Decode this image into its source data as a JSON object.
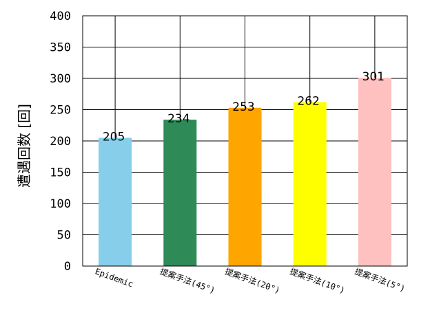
{
  "chart_data": {
    "type": "bar",
    "categories": [
      "Epidemic",
      "提案手法(45°)",
      "提案手法(20°)",
      "提案手法(10°)",
      "提案手法(5°)"
    ],
    "values": [
      205,
      234,
      253,
      262,
      301
    ],
    "colors": [
      "#87ceeb",
      "#2e8b57",
      "#ffa500",
      "#ffff00",
      "#ffc0c0"
    ],
    "data_labels": [
      "205",
      "234",
      "253",
      "262",
      "301"
    ],
    "xlabel": "",
    "ylabel": "遭遇回数 [回]",
    "ylim": [
      0,
      400
    ],
    "yticks": [
      "0",
      "50",
      "100",
      "150",
      "200",
      "250",
      "300",
      "350",
      "400"
    ],
    "grid": true,
    "legend": "none"
  }
}
